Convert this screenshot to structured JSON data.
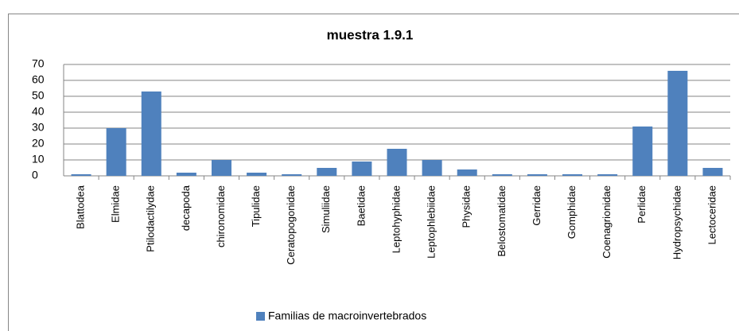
{
  "chart_data": {
    "type": "bar",
    "title": "muestra 1.9.1",
    "categories": [
      "Blattodea",
      "Elmidae",
      "Ptilodactilydae",
      "decapoda",
      "chironomidae",
      "Tipulidae",
      "Ceratopogonidae",
      "Simuliidae",
      "Baetidae",
      "Leptohyphidae",
      "Leptophlebiidae",
      "Physidae",
      "Belostomatidae",
      "Gerridae",
      "Gomphidae",
      "Coenagrionidae",
      "Perlidae",
      "Hydropsychidae",
      "Lectoceridae"
    ],
    "series": [
      {
        "name": "Familias de macroinvertebrados",
        "color": "#4f81bd",
        "values": [
          1,
          30,
          53,
          2,
          10,
          2,
          1,
          5,
          9,
          17,
          10,
          4,
          1,
          1,
          1,
          1,
          31,
          66,
          5
        ]
      }
    ],
    "ylim": [
      0,
      70
    ],
    "yticks": [
      0,
      10,
      20,
      30,
      40,
      50,
      60,
      70
    ],
    "grid": true,
    "legend": "bottom"
  }
}
